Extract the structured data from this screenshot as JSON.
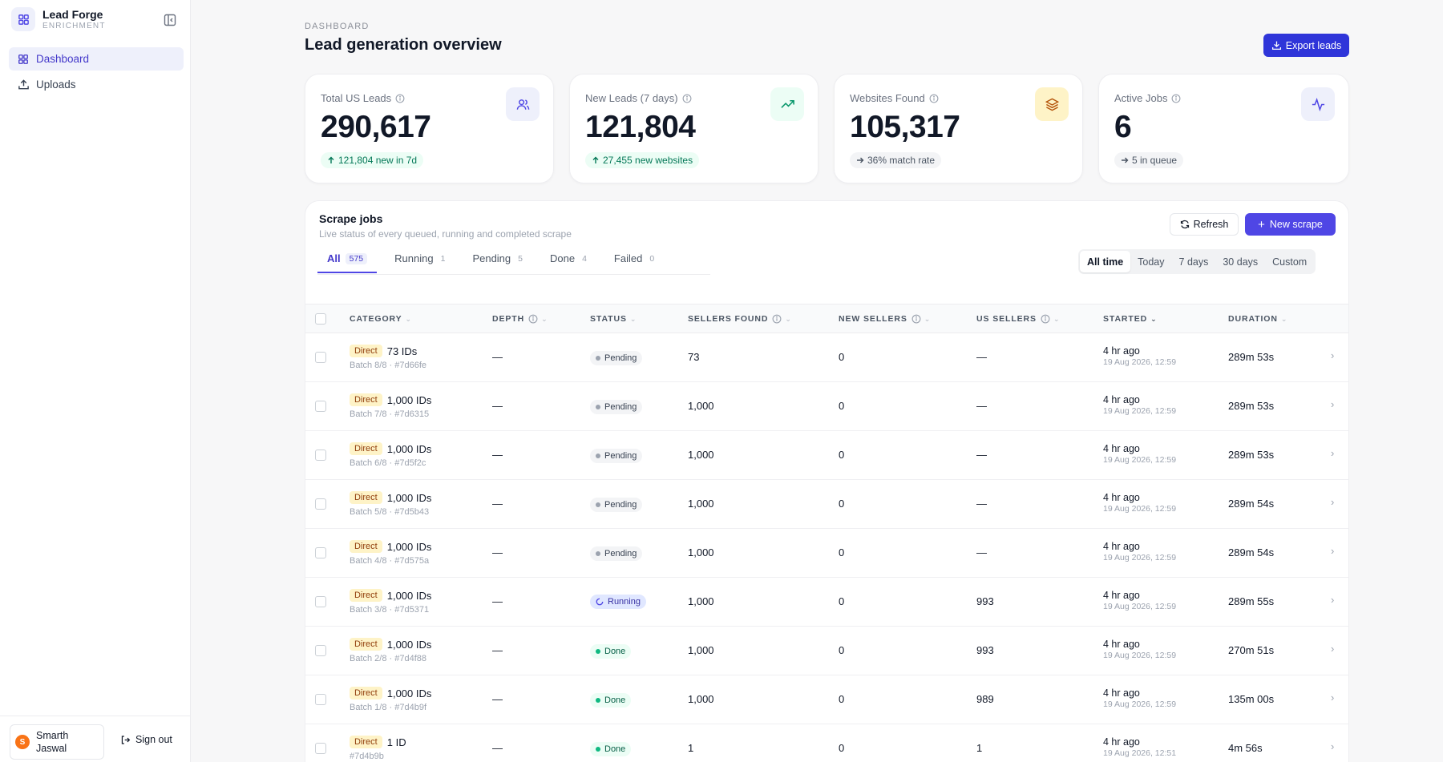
{
  "app": {
    "name": "Lead Forge",
    "subtitle": "ENRICHMENT"
  },
  "sidebar": {
    "items": [
      {
        "label": "Dashboard",
        "icon": "grid-icon",
        "active": true
      },
      {
        "label": "Uploads",
        "icon": "upload-icon",
        "active": false
      }
    ],
    "user": {
      "initial": "S",
      "name": "Smarth Jaswal"
    },
    "sign_out": "Sign out"
  },
  "header": {
    "breadcrumb": "DASHBOARD",
    "title": "Lead generation overview",
    "export_label": "Export leads"
  },
  "stats": [
    {
      "label": "Total US Leads",
      "value": "290,617",
      "pill": "121,804 new in 7d",
      "pill_arrow": "up",
      "icon": "users-icon",
      "icon_color": "#4f46e5",
      "icon_bg": "#eef0fb",
      "pill_bg": "#ecfdf5",
      "pill_color": "#047857"
    },
    {
      "label": "New Leads (7 days)",
      "value": "121,804",
      "pill": "27,455 new websites",
      "pill_arrow": "up",
      "icon": "trending-up-icon",
      "icon_color": "#059669",
      "icon_bg": "#ecfdf5",
      "pill_bg": "#ecfdf5",
      "pill_color": "#047857"
    },
    {
      "label": "Websites Found",
      "value": "105,317",
      "pill": "36% match rate",
      "pill_arrow": "right",
      "icon": "layers-icon",
      "icon_color": "#b45309",
      "icon_bg": "#fef3c7",
      "pill_bg": "#f3f4f6",
      "pill_color": "#4b5563"
    },
    {
      "label": "Active Jobs",
      "value": "6",
      "pill": "5 in queue",
      "pill_arrow": "right",
      "icon": "activity-icon",
      "icon_color": "#4f46e5",
      "icon_bg": "#eef0fb",
      "pill_bg": "#f3f4f6",
      "pill_color": "#4b5563"
    }
  ],
  "jobs": {
    "title": "Scrape jobs",
    "subtitle": "Live status of every queued, running and completed scrape",
    "refresh_label": "Refresh",
    "new_label": "New scrape",
    "tabs": [
      {
        "label": "All",
        "count": "575",
        "active": true
      },
      {
        "label": "Running",
        "count": "1",
        "active": false
      },
      {
        "label": "Pending",
        "count": "5",
        "active": false
      },
      {
        "label": "Done",
        "count": "4",
        "active": false
      },
      {
        "label": "Failed",
        "count": "0",
        "active": false
      }
    ],
    "ranges": [
      {
        "label": "All time",
        "active": true
      },
      {
        "label": "Today",
        "active": false
      },
      {
        "label": "7 days",
        "active": false
      },
      {
        "label": "30 days",
        "active": false
      },
      {
        "label": "Custom",
        "active": false
      }
    ],
    "columns": {
      "category": "CATEGORY",
      "depth": "DEPTH",
      "status": "STATUS",
      "sellers_found": "SELLERS FOUND",
      "new_sellers": "NEW SELLERS",
      "us_sellers": "US SELLERS",
      "started": "STARTED",
      "duration": "DURATION"
    },
    "rows": [
      {
        "badge": "Direct",
        "title": "73 IDs",
        "sub": "Batch 8/8 · #7d66fe",
        "depth": "—",
        "status": "Pending",
        "sellers": "73",
        "new": "0",
        "us": "—",
        "started": "4 hr ago",
        "started_at": "19 Aug 2026, 12:59",
        "duration": "289m 53s"
      },
      {
        "badge": "Direct",
        "title": "1,000 IDs",
        "sub": "Batch 7/8 · #7d6315",
        "depth": "—",
        "status": "Pending",
        "sellers": "1,000",
        "new": "0",
        "us": "—",
        "started": "4 hr ago",
        "started_at": "19 Aug 2026, 12:59",
        "duration": "289m 53s"
      },
      {
        "badge": "Direct",
        "title": "1,000 IDs",
        "sub": "Batch 6/8 · #7d5f2c",
        "depth": "—",
        "status": "Pending",
        "sellers": "1,000",
        "new": "0",
        "us": "—",
        "started": "4 hr ago",
        "started_at": "19 Aug 2026, 12:59",
        "duration": "289m 53s"
      },
      {
        "badge": "Direct",
        "title": "1,000 IDs",
        "sub": "Batch 5/8 · #7d5b43",
        "depth": "—",
        "status": "Pending",
        "sellers": "1,000",
        "new": "0",
        "us": "—",
        "started": "4 hr ago",
        "started_at": "19 Aug 2026, 12:59",
        "duration": "289m 54s"
      },
      {
        "badge": "Direct",
        "title": "1,000 IDs",
        "sub": "Batch 4/8 · #7d575a",
        "depth": "—",
        "status": "Pending",
        "sellers": "1,000",
        "new": "0",
        "us": "—",
        "started": "4 hr ago",
        "started_at": "19 Aug 2026, 12:59",
        "duration": "289m 54s"
      },
      {
        "badge": "Direct",
        "title": "1,000 IDs",
        "sub": "Batch 3/8 · #7d5371",
        "depth": "—",
        "status": "Running",
        "sellers": "1,000",
        "new": "0",
        "us": "993",
        "started": "4 hr ago",
        "started_at": "19 Aug 2026, 12:59",
        "duration": "289m 55s"
      },
      {
        "badge": "Direct",
        "title": "1,000 IDs",
        "sub": "Batch 2/8 · #7d4f88",
        "depth": "—",
        "status": "Done",
        "sellers": "1,000",
        "new": "0",
        "us": "993",
        "started": "4 hr ago",
        "started_at": "19 Aug 2026, 12:59",
        "duration": "270m 51s"
      },
      {
        "badge": "Direct",
        "title": "1,000 IDs",
        "sub": "Batch 1/8 · #7d4b9f",
        "depth": "—",
        "status": "Done",
        "sellers": "1,000",
        "new": "0",
        "us": "989",
        "started": "4 hr ago",
        "started_at": "19 Aug 2026, 12:59",
        "duration": "135m 00s"
      },
      {
        "badge": "Direct",
        "title": "1 ID",
        "sub": "#7d4b9b",
        "depth": "—",
        "status": "Done",
        "sellers": "1",
        "new": "0",
        "us": "1",
        "started": "4 hr ago",
        "started_at": "19 Aug 2026, 12:51",
        "duration": "4m 56s"
      }
    ]
  }
}
